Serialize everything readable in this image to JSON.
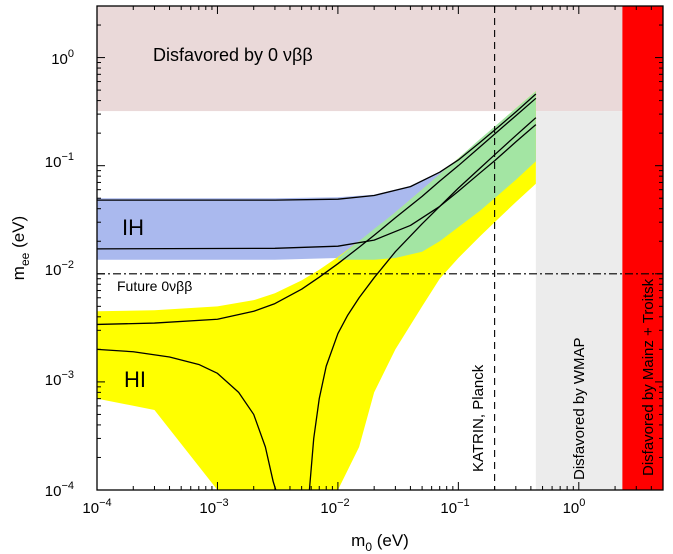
{
  "chart_data": {
    "type": "area",
    "xlabel_base": "m",
    "xlabel_sub": "0",
    "xlabel_unit": " (eV)",
    "ylabel_base": "m",
    "ylabel_sub": "ee",
    "ylabel_unit": " (eV)",
    "xscale": "log",
    "yscale": "log",
    "xlim": [
      0.0001,
      5
    ],
    "ylim": [
      0.0001,
      3
    ],
    "x_ticks": [
      {
        "value": 0.0001,
        "base": "10",
        "exp": "−4"
      },
      {
        "value": 0.001,
        "base": "10",
        "exp": "−3"
      },
      {
        "value": 0.01,
        "base": "10",
        "exp": "−2"
      },
      {
        "value": 0.1,
        "base": "10",
        "exp": "−1"
      },
      {
        "value": 1,
        "base": "10",
        "exp": "0"
      }
    ],
    "y_ticks": [
      {
        "value": 0.0001,
        "base": "10",
        "exp": "−4"
      },
      {
        "value": 0.001,
        "base": "10",
        "exp": "−3"
      },
      {
        "value": 0.01,
        "base": "10",
        "exp": "−2"
      },
      {
        "value": 0.1,
        "base": "10",
        "exp": "−1"
      },
      {
        "value": 1,
        "base": "10",
        "exp": "0"
      }
    ],
    "regions": [
      {
        "label": "Disfavored by 0 νββ",
        "color": "#ead9d9",
        "x": [
          0.0001,
          2.3
        ],
        "y": [
          0.32,
          3
        ]
      },
      {
        "label": "Disfavored by WMAP",
        "color": "#ececec",
        "x": [
          0.44,
          2.3
        ],
        "y": [
          0.0001,
          0.32
        ]
      },
      {
        "label": "Disfavored by Mainz + Troitsk",
        "color": "#ff0000",
        "x": [
          2.3,
          5
        ],
        "y": [
          0.0001,
          3
        ]
      }
    ],
    "bands": [
      {
        "label": "IH",
        "color": "#aab9ee",
        "x": [
          0.0001,
          0.001,
          0.003,
          0.01,
          0.02,
          0.04,
          0.07,
          0.1,
          0.15,
          0.2,
          0.3,
          0.44
        ],
        "upper": [
          0.05,
          0.05,
          0.05,
          0.051,
          0.054,
          0.065,
          0.088,
          0.115,
          0.165,
          0.215,
          0.32,
          0.47
        ],
        "lower": [
          0.0135,
          0.0135,
          0.0135,
          0.014,
          0.0145,
          0.016,
          0.02,
          0.027,
          0.038,
          0.05,
          0.074,
          0.11
        ]
      },
      {
        "label": "HI",
        "color": "#ffff00",
        "x": [
          0.0001,
          0.0003,
          0.001,
          0.002,
          0.003,
          0.005,
          0.007,
          0.01,
          0.015,
          0.02,
          0.03,
          0.05,
          0.07,
          0.1,
          0.15,
          0.2,
          0.3,
          0.44
        ],
        "upper": [
          0.0045,
          0.0046,
          0.005,
          0.0057,
          0.0066,
          0.0087,
          0.0109,
          0.0143,
          0.02,
          0.0256,
          0.037,
          0.06,
          0.083,
          0.117,
          0.173,
          0.228,
          0.34,
          0.49
        ],
        "lower": [
          0.0007,
          0.00055,
          0.0001,
          0.0001,
          0.0001,
          0.0001,
          0.0001,
          0.0001,
          0.00025,
          0.0008,
          0.002,
          0.005,
          0.009,
          0.014,
          0.022,
          0.03,
          0.046,
          0.068
        ]
      },
      {
        "label": "",
        "color": "#a3e5a3",
        "x": [
          0.01,
          0.015,
          0.02,
          0.03,
          0.05,
          0.07,
          0.1,
          0.15,
          0.2,
          0.3,
          0.44
        ],
        "upper": [
          0.014,
          0.02,
          0.026,
          0.037,
          0.06,
          0.083,
          0.117,
          0.175,
          0.23,
          0.34,
          0.49
        ],
        "lower": [
          0.0135,
          0.0135,
          0.0135,
          0.014,
          0.016,
          0.02,
          0.027,
          0.038,
          0.05,
          0.074,
          0.11
        ]
      }
    ],
    "curves": [
      {
        "x": [
          0.0001,
          0.003,
          0.01,
          0.02,
          0.04,
          0.07,
          0.1,
          0.15,
          0.2,
          0.3,
          0.44
        ],
        "y": [
          0.048,
          0.048,
          0.049,
          0.053,
          0.064,
          0.087,
          0.113,
          0.163,
          0.213,
          0.314,
          0.46
        ]
      },
      {
        "x": [
          0.0001,
          0.003,
          0.01,
          0.02,
          0.04,
          0.07,
          0.1,
          0.15,
          0.2,
          0.3,
          0.44
        ],
        "y": [
          0.017,
          0.0172,
          0.018,
          0.0205,
          0.028,
          0.042,
          0.058,
          0.085,
          0.111,
          0.166,
          0.24
        ]
      },
      {
        "x": [
          0.0001,
          0.0003,
          0.001,
          0.002,
          0.003,
          0.005,
          0.007,
          0.01,
          0.015,
          0.02,
          0.03,
          0.05,
          0.07,
          0.1,
          0.15,
          0.2,
          0.3,
          0.44
        ],
        "y": [
          0.0034,
          0.0035,
          0.0038,
          0.0045,
          0.0053,
          0.0072,
          0.0093,
          0.0124,
          0.0176,
          0.0227,
          0.033,
          0.052,
          0.072,
          0.1,
          0.148,
          0.196,
          0.29,
          0.42
        ]
      },
      {
        "x": [
          0.0001,
          0.0002,
          0.0004,
          0.0007,
          0.001,
          0.0015,
          0.002,
          0.0025,
          0.0029,
          0.00305
        ],
        "y": [
          0.002,
          0.0019,
          0.0017,
          0.00145,
          0.0012,
          0.0008,
          0.0005,
          0.00025,
          0.00012,
          0.0001
        ]
      },
      {
        "x": [
          0.0058,
          0.0063,
          0.007,
          0.008,
          0.01,
          0.012,
          0.015,
          0.02,
          0.03,
          0.05,
          0.07,
          0.1,
          0.15,
          0.2,
          0.3,
          0.44
        ],
        "y": [
          0.0001,
          0.0003,
          0.0007,
          0.0014,
          0.0028,
          0.0041,
          0.006,
          0.0092,
          0.016,
          0.029,
          0.042,
          0.062,
          0.094,
          0.126,
          0.19,
          0.278
        ]
      }
    ],
    "reference_lines": [
      {
        "orientation": "vertical",
        "value": 0.2,
        "style": "dashed",
        "label": "KATRIN, Planck"
      },
      {
        "orientation": "horizontal",
        "value": 0.01,
        "style": "dashdot",
        "label": "Future 0νββ"
      }
    ],
    "annotations": [
      {
        "text": "IH",
        "x": 0.00025,
        "y": 0.024
      },
      {
        "text": "HI",
        "x": 0.00025,
        "y": 0.0011
      }
    ]
  }
}
